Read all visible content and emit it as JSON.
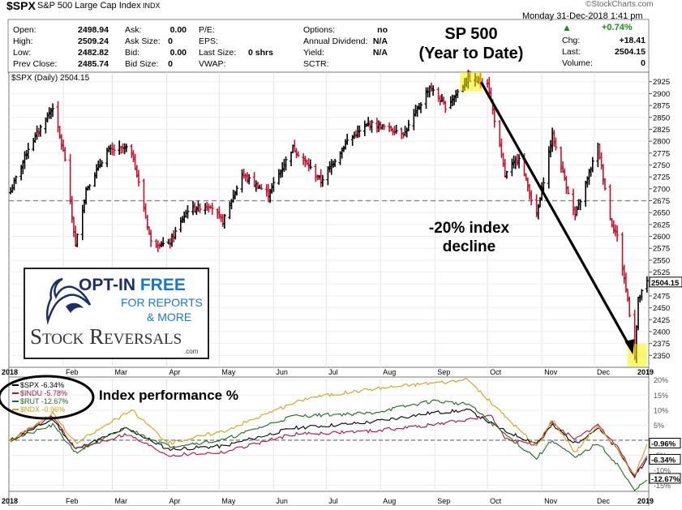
{
  "header": {
    "symbol": "$SPX",
    "name": "S&P 500 Large Cap Index",
    "exchange": "INDX",
    "brand": "©StockCharts.com",
    "datetime": "Monday  31-Dec-2018  1:41 pm",
    "open_label": "Open:",
    "open": "2498.94",
    "high_label": "High:",
    "high": "2509.24",
    "low_label": "Low:",
    "low": "2482.82",
    "prev_label": "Prev Close:",
    "prev": "2485.74",
    "ask_label": "Ask:",
    "ask": "0.00",
    "asksize_label": "Ask Size:",
    "asksize": "0",
    "bid_label": "Bid:",
    "bid": "0.00",
    "bidsize_label": "Bid Size:",
    "bidsize": "0",
    "pe_label": "P/E:",
    "eps_label": "EPS:",
    "lastsize_label": "Last Size:",
    "lastsize": "0 shrs",
    "vwap_label": "VWAP:",
    "options_label": "Options:",
    "options": "no",
    "dividend_label": "Annual Dividend:",
    "dividend": "N/A",
    "yield_label": "Yield:",
    "yield": "N/A",
    "sctr_label": "SCTR:",
    "pct_change": "+0.74%",
    "chg_label": "Chg:",
    "chg": "+18.41",
    "last_label": "Last:",
    "last": "2504.15",
    "volume_label": "Volume:",
    "volume": "0",
    "up_color": "#1a8a1a"
  },
  "annotations": {
    "title_line1": "SP 500",
    "title_line2": "(Year to  Date)",
    "decline_line1": "-20% index",
    "decline_line2": "decline",
    "perf_label": "Index performance %"
  },
  "ad": {
    "line1a": "OPT-IN ",
    "line1b": "FREE",
    "line2": "FOR REPORTS",
    "line3": "& MORE",
    "brand_a": "Stock",
    "brand_b": "Reversals",
    "brand_c": ".com"
  },
  "chart_data": [
    {
      "type": "candlestick",
      "legend": "$SPX (Daily) 2504.15",
      "last_value_tag": "2504.15",
      "reference_line": 2675,
      "ylim": [
        2325,
        2945
      ],
      "y_ticks": [
        2350,
        2375,
        2400,
        2425,
        2450,
        2475,
        2500,
        2525,
        2550,
        2575,
        2600,
        2625,
        2650,
        2675,
        2700,
        2725,
        2750,
        2775,
        2800,
        2825,
        2850,
        2875,
        2900,
        2925
      ],
      "x_labels": [
        "2018",
        "Feb",
        "Mar",
        "Apr",
        "May",
        "Jun",
        "Jul",
        "Aug",
        "Sep",
        "Oct",
        "Nov",
        "Dec",
        "2019"
      ],
      "close_path": [
        [
          "2018-01-02",
          2695
        ],
        [
          "2018-01-12",
          2785
        ],
        [
          "2018-01-26",
          2872
        ],
        [
          "2018-02-02",
          2762
        ],
        [
          "2018-02-08",
          2581
        ],
        [
          "2018-02-14",
          2698
        ],
        [
          "2018-02-26",
          2779
        ],
        [
          "2018-03-09",
          2786
        ],
        [
          "2018-03-13",
          2765
        ],
        [
          "2018-03-23",
          2588
        ],
        [
          "2018-04-02",
          2582
        ],
        [
          "2018-04-13",
          2656
        ],
        [
          "2018-04-26",
          2666
        ],
        [
          "2018-05-03",
          2630
        ],
        [
          "2018-05-14",
          2730
        ],
        [
          "2018-05-29",
          2689
        ],
        [
          "2018-06-12",
          2787
        ],
        [
          "2018-06-28",
          2716
        ],
        [
          "2018-07-13",
          2801
        ],
        [
          "2018-07-26",
          2837
        ],
        [
          "2018-08-15",
          2818
        ],
        [
          "2018-08-29",
          2914
        ],
        [
          "2018-09-07",
          2872
        ],
        [
          "2018-09-20",
          2931
        ],
        [
          "2018-10-01",
          2924
        ],
        [
          "2018-10-11",
          2728
        ],
        [
          "2018-10-19",
          2768
        ],
        [
          "2018-10-29",
          2641
        ],
        [
          "2018-11-07",
          2813
        ],
        [
          "2018-11-20",
          2641
        ],
        [
          "2018-12-03",
          2790
        ],
        [
          "2018-12-10",
          2637
        ],
        [
          "2018-12-14",
          2600
        ],
        [
          "2018-12-20",
          2467
        ],
        [
          "2018-12-24",
          2351
        ],
        [
          "2018-12-26",
          2467
        ],
        [
          "2018-12-31",
          2504
        ]
      ]
    },
    {
      "type": "line",
      "title": "Index performance %",
      "ylim": [
        -17,
        21
      ],
      "y_ticks": [
        -15,
        -10,
        -5,
        0,
        5,
        10,
        15,
        20
      ],
      "x_labels": [
        "2018",
        "Feb",
        "Mar",
        "Apr",
        "May",
        "Jun",
        "Jul",
        "Aug",
        "Sep",
        "Oct",
        "Nov",
        "Dec",
        "2019"
      ],
      "end_tags": [
        "-0.96%",
        "-6.34%",
        "-12.67%"
      ],
      "series": [
        {
          "name": "$SPX -6.34%",
          "color": "#000000",
          "points": [
            [
              "2018-01-02",
              0
            ],
            [
              "2018-01-26",
              7
            ],
            [
              "2018-02-08",
              -3
            ],
            [
              "2018-03-09",
              4
            ],
            [
              "2018-04-02",
              -3
            ],
            [
              "2018-05-03",
              -2
            ],
            [
              "2018-06-12",
              4
            ],
            [
              "2018-07-26",
              6
            ],
            [
              "2018-08-29",
              9
            ],
            [
              "2018-09-20",
              10
            ],
            [
              "2018-10-11",
              3
            ],
            [
              "2018-10-29",
              -1
            ],
            [
              "2018-11-07",
              5
            ],
            [
              "2018-11-20",
              -1
            ],
            [
              "2018-12-03",
              4
            ],
            [
              "2018-12-14",
              -3
            ],
            [
              "2018-12-24",
              -12
            ],
            [
              "2018-12-31",
              -6.34
            ]
          ]
        },
        {
          "name": "$INDU -5.78%",
          "color": "#b0103a",
          "points": [
            [
              "2018-01-02",
              0
            ],
            [
              "2018-01-26",
              8
            ],
            [
              "2018-02-08",
              -3
            ],
            [
              "2018-03-09",
              2
            ],
            [
              "2018-04-02",
              -5
            ],
            [
              "2018-05-03",
              -4
            ],
            [
              "2018-06-12",
              2
            ],
            [
              "2018-07-26",
              3
            ],
            [
              "2018-08-29",
              5
            ],
            [
              "2018-10-03",
              8
            ],
            [
              "2018-10-11",
              1
            ],
            [
              "2018-10-29",
              -2
            ],
            [
              "2018-11-07",
              6
            ],
            [
              "2018-11-20",
              0
            ],
            [
              "2018-12-03",
              5
            ],
            [
              "2018-12-14",
              -2
            ],
            [
              "2018-12-24",
              -12
            ],
            [
              "2018-12-31",
              -5.78
            ]
          ]
        },
        {
          "name": "$RUT -12.67%",
          "color": "#1c6b1c",
          "points": [
            [
              "2018-01-02",
              0
            ],
            [
              "2018-01-26",
              5
            ],
            [
              "2018-02-08",
              -4
            ],
            [
              "2018-03-09",
              4
            ],
            [
              "2018-04-02",
              -2
            ],
            [
              "2018-05-03",
              0
            ],
            [
              "2018-06-12",
              8
            ],
            [
              "2018-07-26",
              9
            ],
            [
              "2018-08-31",
              13
            ],
            [
              "2018-09-20",
              12
            ],
            [
              "2018-10-11",
              2
            ],
            [
              "2018-10-29",
              -6
            ],
            [
              "2018-11-07",
              0
            ],
            [
              "2018-11-20",
              -6
            ],
            [
              "2018-12-03",
              -1
            ],
            [
              "2018-12-14",
              -8
            ],
            [
              "2018-12-24",
              -17
            ],
            [
              "2018-12-31",
              -12.67
            ]
          ]
        },
        {
          "name": "$NDX -0.96%",
          "color": "#d4a017",
          "points": [
            [
              "2018-01-02",
              0
            ],
            [
              "2018-01-26",
              9
            ],
            [
              "2018-02-08",
              -1
            ],
            [
              "2018-03-12",
              10
            ],
            [
              "2018-04-02",
              -1
            ],
            [
              "2018-05-03",
              3
            ],
            [
              "2018-06-20",
              14
            ],
            [
              "2018-07-26",
              17
            ],
            [
              "2018-08-29",
              19
            ],
            [
              "2018-09-20",
              20
            ],
            [
              "2018-10-11",
              8
            ],
            [
              "2018-10-29",
              -2
            ],
            [
              "2018-11-07",
              7
            ],
            [
              "2018-11-20",
              -4
            ],
            [
              "2018-12-03",
              5
            ],
            [
              "2018-12-14",
              -3
            ],
            [
              "2018-12-24",
              -12
            ],
            [
              "2018-12-31",
              -0.96
            ]
          ]
        }
      ]
    }
  ]
}
